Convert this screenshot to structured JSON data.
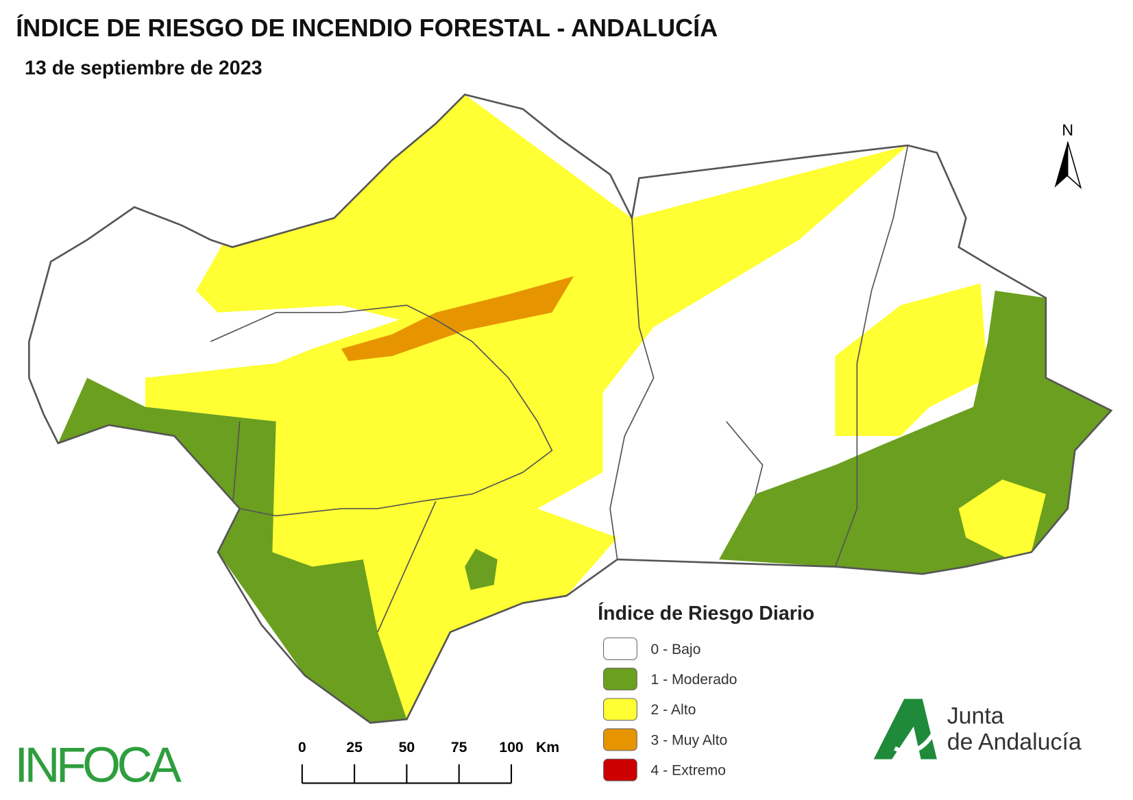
{
  "header": {
    "title": "ÍNDICE DE RIESGO DE INCENDIO FORESTAL - ANDALUCÍA",
    "subtitle": "13 de septiembre de 2023"
  },
  "north": "N",
  "legend": {
    "title": "Índice de Riesgo Diario",
    "items": [
      {
        "label": "0 - Bajo",
        "color": "#ffffff"
      },
      {
        "label": "1 - Moderado",
        "color": "#6b9f1f"
      },
      {
        "label": "2 - Alto",
        "color": "#ffff33"
      },
      {
        "label": "3 - Muy Alto",
        "color": "#e69500"
      },
      {
        "label": "4 - Extremo",
        "color": "#cc0000"
      }
    ]
  },
  "scale": {
    "ticks": [
      0,
      25,
      50,
      75,
      100
    ],
    "unit": "Km"
  },
  "logos": {
    "infoca": "INFOCA",
    "junta_line1": "Junta",
    "junta_line2": "de Andalucía"
  }
}
